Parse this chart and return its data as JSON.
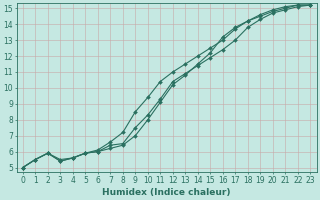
{
  "title": "",
  "xlabel": "Humidex (Indice chaleur)",
  "ylabel": "",
  "xlim": [
    -0.5,
    23.5
  ],
  "ylim": [
    4.7,
    15.3
  ],
  "xticks": [
    0,
    1,
    2,
    3,
    4,
    5,
    6,
    7,
    8,
    9,
    10,
    11,
    12,
    13,
    14,
    15,
    16,
    17,
    18,
    19,
    20,
    21,
    22,
    23
  ],
  "yticks": [
    5,
    6,
    7,
    8,
    9,
    10,
    11,
    12,
    13,
    14,
    15
  ],
  "background_color": "#c5e8e2",
  "grid_color": "#c8a8a8",
  "line_color": "#2a7060",
  "line1_x": [
    0,
    1,
    2,
    3,
    4,
    5,
    6,
    7,
    8,
    9,
    10,
    11,
    12,
    13,
    14,
    15,
    16,
    17,
    18,
    19,
    20,
    21,
    22,
    23
  ],
  "line1_y": [
    5.0,
    5.5,
    5.9,
    5.5,
    5.6,
    5.9,
    6.0,
    6.4,
    6.5,
    7.5,
    8.3,
    9.3,
    10.4,
    10.9,
    11.4,
    11.9,
    12.4,
    13.0,
    13.8,
    14.3,
    14.7,
    14.9,
    15.1,
    15.2
  ],
  "line2_x": [
    0,
    1,
    2,
    3,
    4,
    5,
    6,
    7,
    8,
    9,
    10,
    11,
    12,
    13,
    14,
    15,
    16,
    17,
    18,
    19,
    20,
    21,
    22,
    23
  ],
  "line2_y": [
    5.0,
    5.5,
    5.9,
    5.4,
    5.6,
    5.9,
    6.1,
    6.6,
    7.2,
    8.5,
    9.4,
    10.4,
    11.0,
    11.5,
    12.0,
    12.5,
    13.0,
    13.7,
    14.2,
    14.5,
    14.8,
    15.0,
    15.2,
    15.2
  ],
  "line3_x": [
    0,
    1,
    2,
    3,
    4,
    5,
    6,
    7,
    8,
    9,
    10,
    11,
    12,
    13,
    14,
    15,
    16,
    17,
    18,
    19,
    20,
    21,
    22,
    23
  ],
  "line3_y": [
    5.0,
    5.5,
    5.9,
    5.4,
    5.6,
    5.9,
    6.0,
    6.2,
    6.4,
    7.0,
    8.0,
    9.1,
    10.2,
    10.8,
    11.5,
    12.2,
    13.2,
    13.8,
    14.2,
    14.6,
    14.9,
    15.1,
    15.2,
    15.2
  ],
  "fontsize_tick": 5.5,
  "fontsize_label": 6.5,
  "marker": "D",
  "marker_size": 2.0,
  "linewidth": 0.8
}
